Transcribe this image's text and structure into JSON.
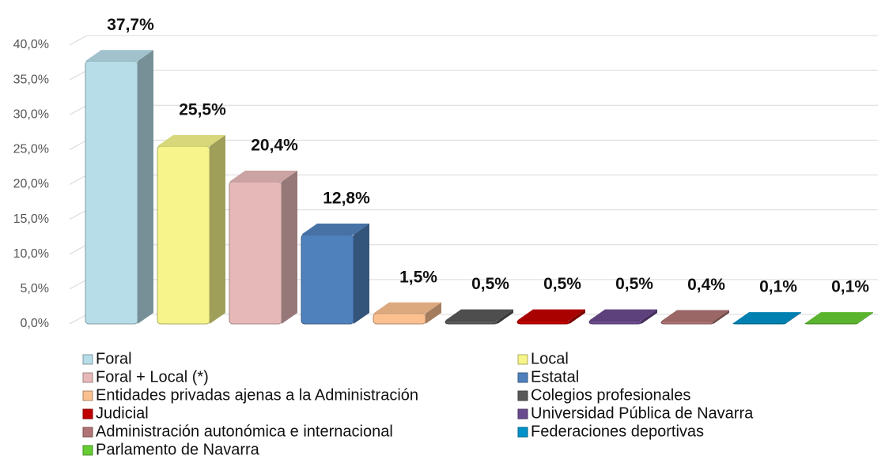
{
  "chart_data": {
    "type": "bar3d",
    "series": [
      {
        "name": "Foral",
        "color": "#b7dde8",
        "values": [
          37.7
        ],
        "value_labels": [
          "37,7%"
        ]
      },
      {
        "name": "Local",
        "color": "#f6f48a",
        "values": [
          25.5
        ],
        "value_labels": [
          "25,5%"
        ]
      },
      {
        "name": "Foral + Local (*)",
        "color": "#e6b9b8",
        "values": [
          20.4
        ],
        "value_labels": [
          "20,4%"
        ]
      },
      {
        "name": "Estatal",
        "color": "#4f81bd",
        "values": [
          12.8
        ],
        "value_labels": [
          "12,8%"
        ]
      },
      {
        "name": "Entidades privadas ajenas a la Administración",
        "color": "#fac090",
        "values": [
          1.5
        ],
        "value_labels": [
          "1,5%"
        ]
      },
      {
        "name": "Colegios profesionales",
        "color": "#595959",
        "values": [
          0.5
        ],
        "value_labels": [
          "0,5%"
        ]
      },
      {
        "name": "Judicial",
        "color": "#c00000",
        "values": [
          0.5
        ],
        "value_labels": [
          "0,5%"
        ]
      },
      {
        "name": "Universidad Pública de Navarra",
        "color": "#6a4a8e",
        "values": [
          0.5
        ],
        "value_labels": [
          "0,5%"
        ]
      },
      {
        "name": "Administración autonómica e internacional",
        "color": "#b07474",
        "values": [
          0.4
        ],
        "value_labels": [
          "0,4%"
        ]
      },
      {
        "name": "Federaciones deportivas",
        "color": "#0091c8",
        "values": [
          0.1
        ],
        "value_labels": [
          "0,1%"
        ]
      },
      {
        "name": "Parlamento de Navarra",
        "color": "#66cc33",
        "values": [
          0.1
        ],
        "value_labels": [
          "0,1%"
        ]
      }
    ],
    "ylim": [
      0,
      40
    ],
    "yticks": [
      {
        "value": 0,
        "label": "0,0%"
      },
      {
        "value": 5,
        "label": "5,0%"
      },
      {
        "value": 10,
        "label": "10,0%"
      },
      {
        "value": 15,
        "label": "15,0%"
      },
      {
        "value": 20,
        "label": "20,0%"
      },
      {
        "value": 25,
        "label": "25,0%"
      },
      {
        "value": 30,
        "label": "30,0%"
      },
      {
        "value": 35,
        "label": "35,0%"
      },
      {
        "value": 40,
        "label": "40,0%"
      }
    ],
    "grid": true,
    "legend": "bottom"
  }
}
